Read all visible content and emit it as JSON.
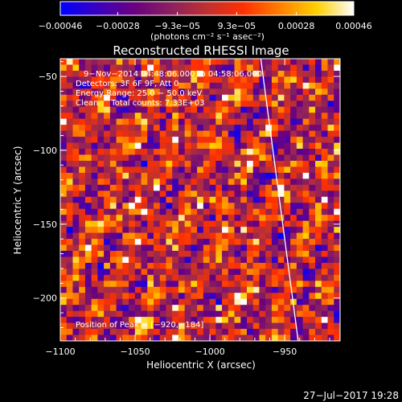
{
  "chart_data": {
    "type": "heatmap",
    "title": "Reconstructed RHESSI Image",
    "xlabel": "Heliocentric X (arcsec)",
    "ylabel": "Heliocentric Y (arcsec)",
    "xlim": [
      -1100,
      -913
    ],
    "ylim": [
      -229,
      -38
    ],
    "x_ticks": [
      {
        "value": -1100,
        "label": "−1100"
      },
      {
        "value": -1050,
        "label": "−1050"
      },
      {
        "value": -1000,
        "label": "−1000"
      },
      {
        "value": -950,
        "label": "−950"
      }
    ],
    "y_ticks": [
      {
        "value": -50,
        "label": "−50"
      },
      {
        "value": -100,
        "label": "−100"
      },
      {
        "value": -150,
        "label": "−150"
      },
      {
        "value": -200,
        "label": "−200"
      }
    ],
    "colorbar": {
      "range": [
        -0.00046,
        0.00046
      ],
      "ticks": [
        {
          "value": -0.00046,
          "label": "−0.00046"
        },
        {
          "value": -0.00028,
          "label": "−0.00028"
        },
        {
          "value": -9.3e-05,
          "label": "−9.3e−05"
        },
        {
          "value": 9.3e-05,
          "label": "9.3e−05"
        },
        {
          "value": 0.00028,
          "label": "0.00028"
        },
        {
          "value": 0.00046,
          "label": "0.00046"
        }
      ],
      "unit": "(photons cm⁻² s⁻¹ asec⁻²)",
      "colors": [
        "#0000ff",
        "#3a00c0",
        "#6a0080",
        "#8a2060",
        "#c03030",
        "#ff3000",
        "#ff8000",
        "#ffd000",
        "#ffffff"
      ]
    },
    "info_lines": [
      "9−Nov−2014 04:48:06.000 to 04:58:06.000",
      "Detectors: 3F 6F 9F, Att 0",
      "Energy Range: 25.0 − 50.0 keV",
      "Clean     Total counts: 7.33E+03"
    ],
    "peak_label": "Position of Peak = [−920,−184]",
    "peak": {
      "x": -920,
      "y": -184
    },
    "limb_line": [
      {
        "x": -966,
        "y": -38
      },
      {
        "x": -941,
        "y": -229
      }
    ],
    "grid_shape": [
      45,
      47
    ],
    "footer_date": "27−Jul−2017 19:28"
  }
}
